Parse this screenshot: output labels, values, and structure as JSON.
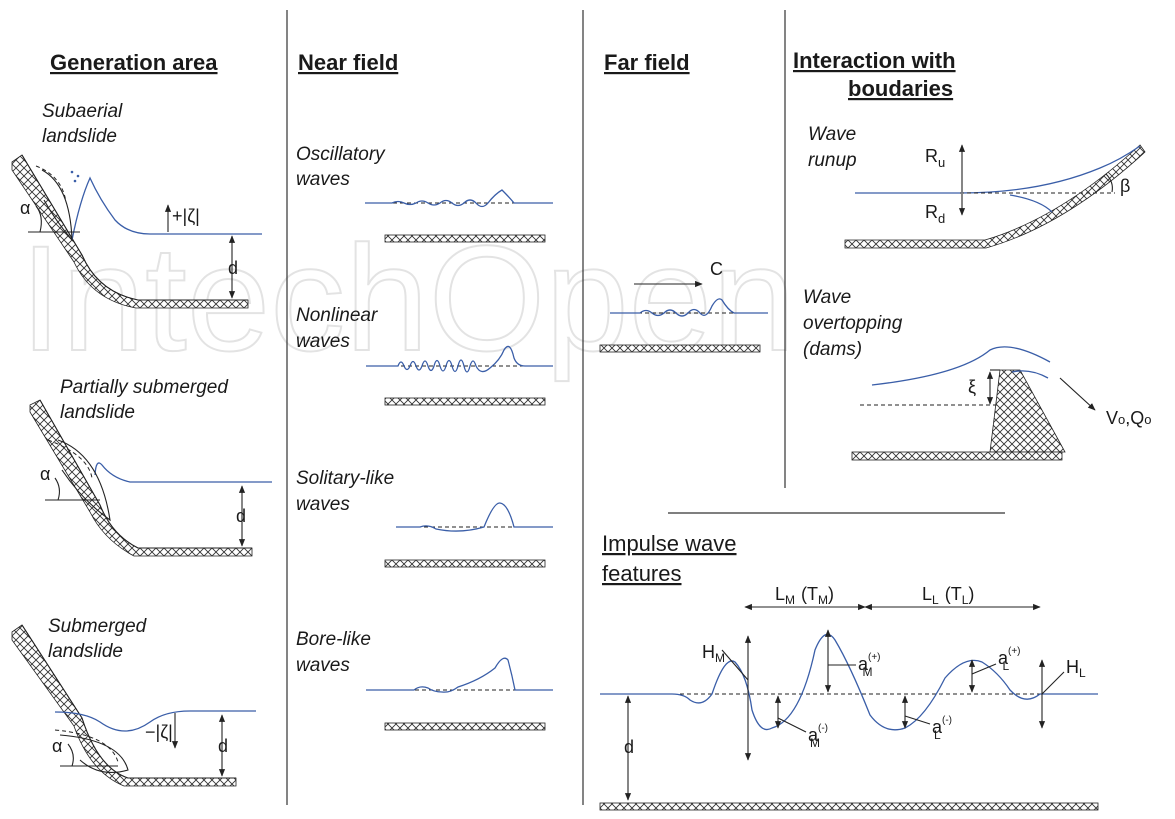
{
  "watermark": "IntechOpen",
  "columns": {
    "generation": {
      "title": "Generation area",
      "cases": [
        {
          "line1": "Subaerial",
          "line2": "landslide",
          "amp_label": "+|ζ|",
          "depth_label": "d",
          "angle_label": "α"
        },
        {
          "line1": "Partially submerged",
          "line2": "landslide",
          "depth_label": "d",
          "angle_label": "α"
        },
        {
          "line1": "Submerged",
          "line2": "landslide",
          "amp_label": "−|ζ|",
          "depth_label": "d",
          "angle_label": "α"
        }
      ]
    },
    "near_field": {
      "title": "Near field",
      "waves": [
        {
          "line1": "Oscillatory",
          "line2": "waves"
        },
        {
          "line1": "Nonlinear",
          "line2": "waves"
        },
        {
          "line1": "Solitary-like",
          "line2": "waves"
        },
        {
          "line1": "Bore-like",
          "line2": "waves"
        }
      ]
    },
    "far_field": {
      "title": "Far field",
      "celerity_label": "C"
    },
    "boundaries": {
      "title_line1": "Interaction with",
      "title_line2": "boudaries",
      "runup": {
        "line1": "Wave",
        "line2": "runup",
        "ru": "R",
        "ru_sub": "u",
        "rd": "R",
        "rd_sub": "d",
        "angle": "β"
      },
      "overtopping": {
        "line1": "Wave",
        "line2": "overtopping",
        "line3": "(dams)",
        "freeboard": "ξ",
        "volume": "V",
        "volume_sub": "o",
        "rate": "Q",
        "rate_sub": "o"
      }
    }
  },
  "features": {
    "title_line1": "Impulse wave",
    "title_line2": "features",
    "lm": "L",
    "lm_sub": "M",
    "tm": "(T",
    "tm_sub": "M",
    "tm_close": ")",
    "ll": "L",
    "ll_sub": "L",
    "tl": "(T",
    "tl_sub": "L",
    "tl_close": ")",
    "hm": "H",
    "hm_sub": "M",
    "hl": "H",
    "hl_sub": "L",
    "am_pos": "a",
    "am_pos_sub": "M",
    "am_pos_sup": "(+)",
    "am_neg": "a",
    "am_neg_sub": "M",
    "am_neg_sup": "(-)",
    "al_pos": "a",
    "al_pos_sub": "L",
    "al_pos_sup": "(+)",
    "al_neg": "a",
    "al_neg_sub": "L",
    "al_neg_sup": "(-)",
    "depth_label": "d"
  }
}
